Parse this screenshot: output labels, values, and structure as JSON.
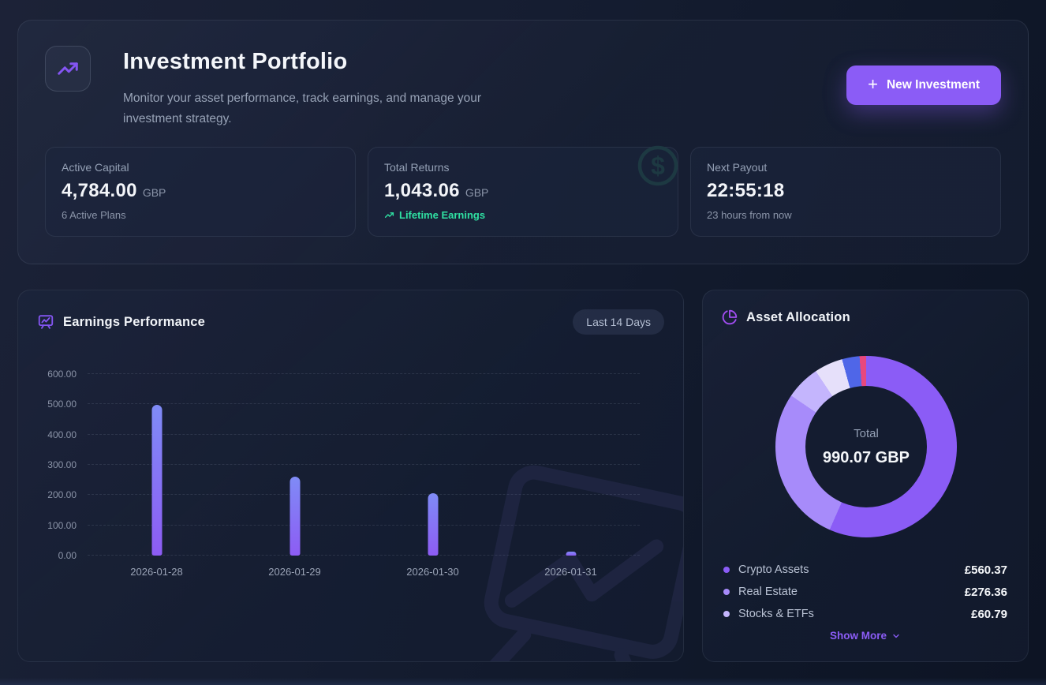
{
  "header": {
    "title": "Investment Portfolio",
    "subtitle": "Monitor your asset performance, track earnings, and manage your investment strategy.",
    "new_investment_label": "New Investment"
  },
  "stats": [
    {
      "label": "Active Capital",
      "value": "4,784.00",
      "currency": "GBP",
      "sub": "6 Active Plans"
    },
    {
      "label": "Total Returns",
      "value": "1,043.06",
      "currency": "GBP",
      "sub": "Lifetime Earnings"
    },
    {
      "label": "Next Payout",
      "value": "22:55:18",
      "currency": "",
      "sub": "23 hours from now"
    }
  ],
  "earnings_panel": {
    "title": "Earnings Performance",
    "range_badge": "Last 14 Days"
  },
  "allocation_panel": {
    "title": "Asset Allocation",
    "center_label": "Total",
    "center_value": "990.07 GBP",
    "legend": [
      {
        "name": "Crypto Assets",
        "value": "£560.37"
      },
      {
        "name": "Real Estate",
        "value": "£276.36"
      },
      {
        "name": "Stocks & ETFs",
        "value": "£60.79"
      }
    ],
    "show_more_label": "Show More"
  },
  "colors": {
    "accent_purple": "#8b5cf6",
    "success_green": "#2fe0a2",
    "bar_gradient_top": "#7f8bf6",
    "bar_gradient_bottom": "#8d5cf4"
  },
  "chart_data": [
    {
      "type": "bar",
      "title": "Earnings Performance",
      "categories": [
        "2026-01-28",
        "2026-01-29",
        "2026-01-30",
        "2026-01-31"
      ],
      "values": [
        498,
        262,
        205,
        14
      ],
      "xlabel": "",
      "ylabel": "",
      "ylim": [
        0,
        600
      ],
      "yticks": [
        0,
        100,
        200,
        300,
        400,
        500,
        600
      ],
      "ytick_labels": [
        "0.00",
        "100.00",
        "200.00",
        "300.00",
        "400.00",
        "500.00",
        "600.00"
      ],
      "grid": "dashed-horizontal",
      "legend_position": "none"
    },
    {
      "type": "pie",
      "title": "Asset Allocation",
      "donut": true,
      "total_label": "Total",
      "total_value": "990.07 GBP",
      "slices": [
        {
          "name": "Crypto Assets",
          "value": 560.37,
          "color": "#8b5cf6"
        },
        {
          "name": "Real Estate",
          "value": 276.36,
          "color": "#a78bfa"
        },
        {
          "name": "Stocks & ETFs",
          "value": 60.79,
          "color": "#c4b5fd"
        },
        {
          "name": "",
          "value": 50.06,
          "color": "#e6e0fa"
        },
        {
          "name": "",
          "value": 30.94,
          "color": "#4f66e8"
        },
        {
          "name": "",
          "value": 11.55,
          "color": "#e8487e"
        }
      ]
    }
  ]
}
